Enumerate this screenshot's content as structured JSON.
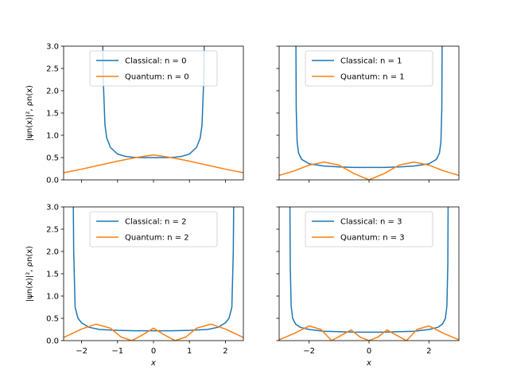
{
  "colors": {
    "classical": "#1f77b4",
    "quantum": "#ff7f0e"
  },
  "chart_data": [
    {
      "type": "line",
      "n": 0,
      "xlim": [
        -2.5,
        2.5
      ],
      "ylim": [
        0,
        3
      ],
      "xticks": [
        -2,
        -1,
        0,
        1,
        2
      ],
      "yticks": [
        0.0,
        0.5,
        1.0,
        1.5,
        2.0,
        2.5,
        3.0
      ],
      "ytick_labels": [
        "0.0",
        "0.5",
        "1.0",
        "1.5",
        "2.0",
        "2.5",
        "3.0"
      ],
      "xtick_labels": [],
      "xlabel": "",
      "ylabel": "|ψn(x)|², ρn(x)",
      "legend": {
        "position": "upper-center",
        "entries": [
          "Classical: n = 0",
          "Quantum: n = 0"
        ]
      },
      "series": [
        {
          "name": "Classical: n = 0",
          "color_key": "classical",
          "x": [
            -1.41,
            -1.4,
            -1.35,
            -1.3,
            -1.2,
            -1.0,
            -0.8,
            -0.6,
            -0.4,
            -0.2,
            0.0,
            0.2,
            0.4,
            0.6,
            0.8,
            1.0,
            1.2,
            1.3,
            1.35,
            1.4,
            1.41
          ],
          "y": [
            3.0,
            2.3,
            1.23,
            0.94,
            0.73,
            0.58,
            0.53,
            0.51,
            0.5,
            0.5,
            0.5,
            0.5,
            0.5,
            0.51,
            0.53,
            0.58,
            0.73,
            0.94,
            1.23,
            2.3,
            3.0
          ]
        },
        {
          "name": "Quantum: n = 0",
          "color_key": "quantum",
          "x": [
            -2.5,
            -2.0,
            -1.5,
            -1.0,
            -0.5,
            0.0,
            0.5,
            1.0,
            1.5,
            2.0,
            2.5
          ],
          "y": [
            0.16,
            0.24,
            0.33,
            0.42,
            0.5,
            0.56,
            0.5,
            0.42,
            0.33,
            0.24,
            0.16
          ]
        }
      ]
    },
    {
      "type": "line",
      "n": 1,
      "xlim": [
        -3,
        3
      ],
      "ylim": [
        0,
        3
      ],
      "xticks": [
        -2,
        0,
        2
      ],
      "yticks": [
        0.0,
        0.5,
        1.0,
        1.5,
        2.0,
        2.5,
        3.0
      ],
      "ytick_labels": [],
      "xtick_labels": [],
      "xlabel": "",
      "ylabel": "",
      "legend": {
        "position": "upper-center",
        "entries": [
          "Classical: n = 1",
          "Quantum: n = 1"
        ]
      },
      "series": [
        {
          "name": "Classical: n = 1",
          "color_key": "classical",
          "x": [
            -2.44,
            -2.43,
            -2.4,
            -2.35,
            -2.25,
            -2.0,
            -1.5,
            -1.0,
            -0.5,
            0.0,
            0.5,
            1.0,
            1.5,
            2.0,
            2.25,
            2.35,
            2.4,
            2.43,
            2.44
          ],
          "y": [
            3.0,
            1.6,
            0.85,
            0.6,
            0.46,
            0.36,
            0.31,
            0.29,
            0.28,
            0.28,
            0.28,
            0.29,
            0.31,
            0.36,
            0.46,
            0.6,
            0.85,
            1.6,
            3.0
          ]
        },
        {
          "name": "Quantum: n = 1",
          "color_key": "quantum",
          "x": [
            -3.0,
            -2.5,
            -2.0,
            -1.5,
            -1.0,
            -0.5,
            0.0,
            0.5,
            1.0,
            1.5,
            2.0,
            2.5,
            3.0
          ],
          "y": [
            0.1,
            0.2,
            0.33,
            0.4,
            0.33,
            0.14,
            0.0,
            0.14,
            0.33,
            0.4,
            0.33,
            0.2,
            0.1
          ]
        }
      ]
    },
    {
      "type": "line",
      "n": 2,
      "xlim": [
        -2.5,
        2.5
      ],
      "ylim": [
        0,
        3
      ],
      "xticks": [
        -2,
        -1,
        0,
        1,
        2
      ],
      "yticks": [
        0.0,
        0.5,
        1.0,
        1.5,
        2.0,
        2.5,
        3.0
      ],
      "ytick_labels": [
        "0.0",
        "0.5",
        "1.0",
        "1.5",
        "2.0",
        "2.5",
        "3.0"
      ],
      "xtick_labels": [
        "−2",
        "−1",
        "0",
        "1",
        "2"
      ],
      "xlabel": "x",
      "ylabel": "|ψn(x)|², ρn(x)",
      "legend": {
        "position": "upper-center",
        "entries": [
          "Classical: n = 2",
          "Quantum: n = 2"
        ]
      },
      "series": [
        {
          "name": "Classical: n = 2",
          "color_key": "classical",
          "x": [
            -2.23,
            -2.22,
            -2.18,
            -2.1,
            -2.0,
            -1.8,
            -1.5,
            -1.0,
            -0.5,
            0.0,
            0.5,
            1.0,
            1.5,
            1.8,
            2.0,
            2.1,
            2.18,
            2.22,
            2.23
          ],
          "y": [
            3.0,
            2.0,
            0.75,
            0.5,
            0.4,
            0.3,
            0.25,
            0.23,
            0.22,
            0.22,
            0.22,
            0.23,
            0.25,
            0.3,
            0.4,
            0.5,
            0.75,
            2.0,
            3.0
          ]
        },
        {
          "name": "Quantum: n = 2",
          "color_key": "quantum",
          "x": [
            -2.5,
            -2.0,
            -1.6,
            -1.2,
            -0.9,
            -0.6,
            -0.3,
            0.0,
            0.3,
            0.6,
            0.9,
            1.2,
            1.6,
            2.0,
            2.5
          ],
          "y": [
            0.07,
            0.26,
            0.37,
            0.28,
            0.08,
            0.0,
            0.13,
            0.28,
            0.13,
            0.0,
            0.08,
            0.28,
            0.37,
            0.26,
            0.07
          ]
        }
      ]
    },
    {
      "type": "line",
      "n": 3,
      "xlim": [
        -3,
        3
      ],
      "ylim": [
        0,
        3
      ],
      "xticks": [
        -2,
        0,
        2
      ],
      "yticks": [
        0.0,
        0.5,
        1.0,
        1.5,
        2.0,
        2.5,
        3.0
      ],
      "ytick_labels": [],
      "xtick_labels": [
        "−2",
        "0",
        "2"
      ],
      "xlabel": "x",
      "ylabel": "",
      "legend": {
        "position": "upper-center",
        "entries": [
          "Classical: n = 3",
          "Quantum: n = 3"
        ]
      },
      "series": [
        {
          "name": "Classical: n = 3",
          "color_key": "classical",
          "x": [
            -2.64,
            -2.63,
            -2.6,
            -2.55,
            -2.45,
            -2.3,
            -2.0,
            -1.5,
            -1.0,
            -0.5,
            0.0,
            0.5,
            1.0,
            1.5,
            2.0,
            2.3,
            2.45,
            2.55,
            2.6,
            2.63,
            2.64
          ],
          "y": [
            3.0,
            1.7,
            0.78,
            0.5,
            0.37,
            0.3,
            0.25,
            0.21,
            0.2,
            0.19,
            0.19,
            0.19,
            0.2,
            0.21,
            0.25,
            0.3,
            0.37,
            0.5,
            0.78,
            1.7,
            3.0
          ]
        },
        {
          "name": "Quantum: n = 3",
          "color_key": "quantum",
          "x": [
            -3.0,
            -2.5,
            -2.0,
            -1.6,
            -1.25,
            -1.0,
            -0.6,
            -0.3,
            0.0,
            0.3,
            0.6,
            1.0,
            1.25,
            1.6,
            2.0,
            2.5,
            3.0
          ],
          "y": [
            0.02,
            0.16,
            0.33,
            0.25,
            0.0,
            0.09,
            0.24,
            0.08,
            0.0,
            0.08,
            0.24,
            0.09,
            0.0,
            0.25,
            0.33,
            0.16,
            0.02
          ]
        }
      ]
    }
  ]
}
